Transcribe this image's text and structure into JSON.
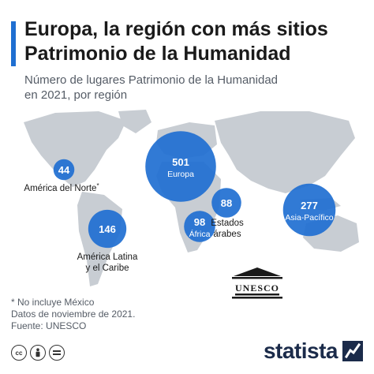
{
  "header": {
    "title_line1": "Europa, la región con más sitios",
    "title_line2": "Patrimonio de la Humanidad",
    "subtitle_line1": "Número de lugares Patrimonio de la Humanidad",
    "subtitle_line2": "en 2021, por región"
  },
  "colors": {
    "accent": "#1f6fd1",
    "bubble": "#1f6fd1",
    "map": "#c8cdd3"
  },
  "chart_data": {
    "type": "bubble-map",
    "title": "Europa, la región con más sitios Patrimonio de la Humanidad",
    "subtitle": "Número de lugares Patrimonio de la Humanidad en 2021, por región",
    "regions": [
      {
        "name": "América del Norte*",
        "value": 44
      },
      {
        "name": "Europa",
        "value": 501
      },
      {
        "name": "Estados árabes",
        "value": 88
      },
      {
        "name": "África",
        "value": 98
      },
      {
        "name": "Asia-Pacífico",
        "value": 277
      },
      {
        "name": "América Latina y el Caribe",
        "value": 146
      }
    ],
    "labels": {
      "north_america": "América del Norte",
      "north_america_mark": "*",
      "latin_line1": "América Latina",
      "latin_line2": "y el Caribe",
      "arab_line1": "Estados",
      "arab_line2": "árabes"
    }
  },
  "unesco_label": "UNESCO",
  "footer": {
    "note1": "* No incluye México",
    "note2": "Datos de noviembre de 2021.",
    "note3": "Fuente: UNESCO",
    "brand": "statista"
  },
  "icons": [
    "cc-icon",
    "by-icon",
    "equals-icon",
    "statista-logo-icon",
    "unesco-temple-icon"
  ]
}
